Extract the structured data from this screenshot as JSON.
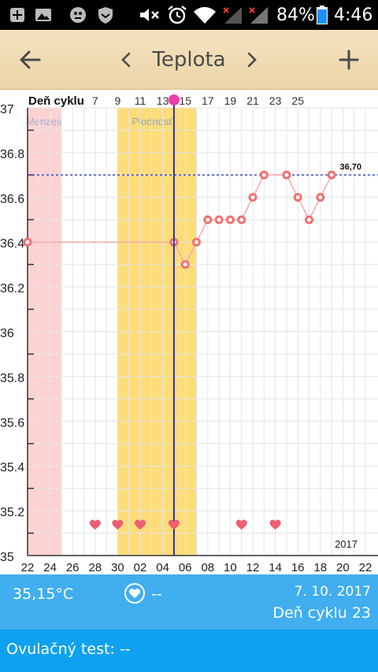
{
  "statusbar": {
    "battery": "84%",
    "time": "4:46"
  },
  "appbar": {
    "title": "Teplota"
  },
  "chart_data": {
    "type": "line",
    "title": "",
    "ylabel_header": "Deň cyklu",
    "y_ticks": [
      "37",
      "36.8",
      "36.6",
      "36.4",
      "36.2",
      "36",
      "35.8",
      "35.6",
      "35.4",
      "35.2",
      "35"
    ],
    "ylim": [
      35,
      37
    ],
    "x_date_labels": [
      "22",
      "24",
      "26",
      "28",
      "30",
      "02",
      "04",
      "06",
      "08",
      "10",
      "12",
      "14",
      "16",
      "18",
      "20",
      "22"
    ],
    "cycle_day_labels": [
      "7",
      "9",
      "11",
      "13",
      "15",
      "17",
      "19",
      "21",
      "23",
      "25"
    ],
    "year_label": "2017",
    "bands": [
      {
        "label": "Menzes",
        "color": "#ffd2d2"
      },
      {
        "label": "Plodnosť",
        "color": "#fddc7a"
      }
    ],
    "cover_line": {
      "value": 36.7,
      "label": "36,70"
    },
    "series": [
      {
        "color": "#f26f6f",
        "points": [
          {
            "x": 0,
            "y": 36.4
          },
          {
            "x": 13,
            "y": 36.4
          },
          {
            "x": 14,
            "y": 36.3
          },
          {
            "x": 15,
            "y": 36.4
          },
          {
            "x": 16,
            "y": 36.5
          },
          {
            "x": 17,
            "y": 36.5
          },
          {
            "x": 18,
            "y": 36.5
          },
          {
            "x": 19,
            "y": 36.5
          },
          {
            "x": 20,
            "y": 36.6
          },
          {
            "x": 21,
            "y": 36.7
          },
          {
            "x": 23,
            "y": 36.7
          },
          {
            "x": 24,
            "y": 36.6
          },
          {
            "x": 25,
            "y": 36.5
          },
          {
            "x": 26,
            "y": 36.6
          },
          {
            "x": 27,
            "y": 36.7
          }
        ]
      }
    ],
    "heart_days": [
      6,
      8,
      10,
      13,
      19,
      22
    ],
    "current_day": 13
  },
  "info": {
    "temperature": "35,15°C",
    "heart_value": "--",
    "date": "7. 10. 2017",
    "cycle_day": "Deň cyklu 23"
  },
  "ovulation": {
    "text": "Ovulačný test: --"
  }
}
